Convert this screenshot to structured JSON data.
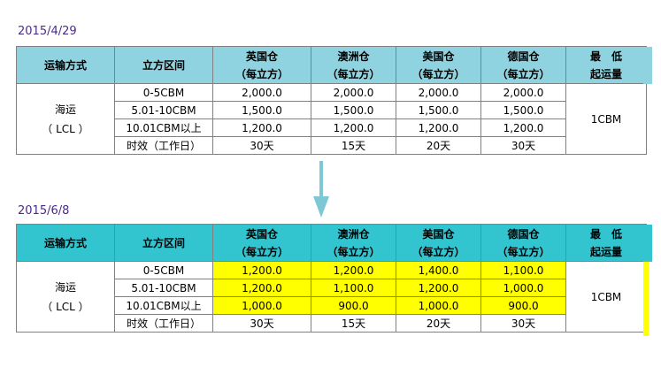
{
  "colors": {
    "date_text": "#4b2a8a",
    "header_old": "#8fd3e1",
    "header_new": "#32c4cf",
    "highlight": "#ffff00",
    "arrow": "#7ec8d6"
  },
  "icons": {
    "arrow": "down-arrow-icon"
  },
  "tables": [
    {
      "date": "2015/4/29",
      "headers": {
        "mode": "运输方式",
        "range": "立方区间",
        "uk": "英国仓",
        "uk_unit": "（每立方）",
        "au": "澳洲仓",
        "au_unit": "（每立方）",
        "us": "美国仓",
        "us_unit": "（每立方）",
        "de": "德国仓",
        "de_unit": "（每立方）",
        "min": "最　低",
        "min2": "起运量"
      },
      "mode_line1": "海运",
      "mode_line2": "（ LCL ）",
      "min_value": "1CBM",
      "rows": [
        {
          "range": "0-5CBM",
          "uk": "2,000.0",
          "au": "2,000.0",
          "us": "2,000.0",
          "de": "2,000.0"
        },
        {
          "range": "5.01-10CBM",
          "uk": "1,500.0",
          "au": "1,500.0",
          "us": "1,500.0",
          "de": "1,500.0"
        },
        {
          "range": "10.01CBM以上",
          "uk": "1,200.0",
          "au": "1,200.0",
          "us": "1,200.0",
          "de": "1,200.0"
        },
        {
          "range": "时效（工作日）",
          "uk": "30天",
          "au": "15天",
          "us": "20天",
          "de": "30天"
        }
      ]
    },
    {
      "date": "2015/6/8",
      "headers": {
        "mode": "运输方式",
        "range": "立方区间",
        "uk": "英国仓",
        "uk_unit": "（每立方）",
        "au": "澳洲仓",
        "au_unit": "（每立方）",
        "us": "美国仓",
        "us_unit": "（每立方）",
        "de": "德国仓",
        "de_unit": "（每立方）",
        "min": "最　低",
        "min2": "起运量"
      },
      "mode_line1": "海运",
      "mode_line2": "（ LCL ）",
      "min_value": "1CBM",
      "rows": [
        {
          "range": "0-5CBM",
          "uk": "1,200.0",
          "au": "1,200.0",
          "us": "1,400.0",
          "de": "1,100.0"
        },
        {
          "range": "5.01-10CBM",
          "uk": "1,200.0",
          "au": "1,100.0",
          "us": "1,200.0",
          "de": "1,000.0"
        },
        {
          "range": "10.01CBM以上",
          "uk": "1,000.0",
          "au": "900.0",
          "us": "1,000.0",
          "de": "900.0"
        },
        {
          "range": "时效（工作日）",
          "uk": "30天",
          "au": "15天",
          "us": "20天",
          "de": "30天"
        }
      ]
    }
  ]
}
